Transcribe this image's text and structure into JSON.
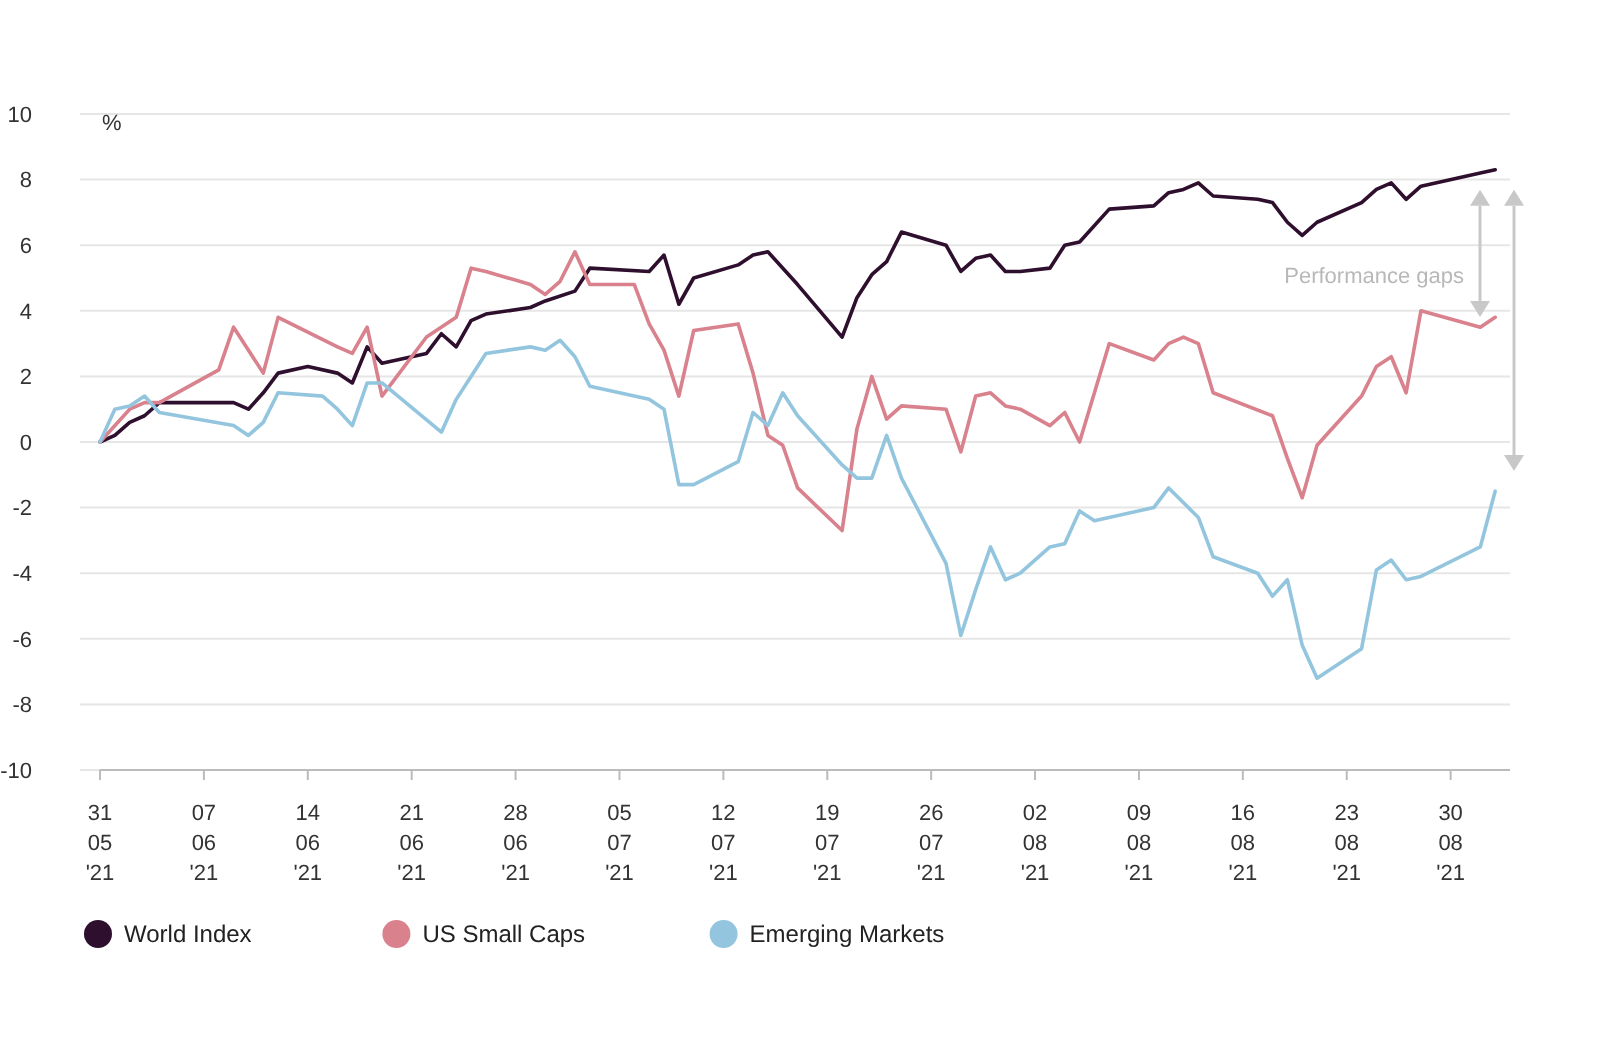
{
  "chart_data": {
    "type": "line",
    "ylabel": "%",
    "legend": "bottom",
    "grid": "y",
    "marker": "none",
    "line_style": "solid",
    "xlim": [
      "2021-05-31",
      "2021-09-03"
    ],
    "ylim": [
      -10,
      10
    ],
    "yticks": [
      -10,
      -8,
      -6,
      -4,
      -2,
      0,
      2,
      4,
      6,
      8,
      10
    ],
    "xticks": [
      {
        "value": "2021-05-31",
        "label": "31\n05\n'21"
      },
      {
        "value": "2021-06-07",
        "label": "07\n06\n'21"
      },
      {
        "value": "2021-06-14",
        "label": "14\n06\n'21"
      },
      {
        "value": "2021-06-21",
        "label": "21\n06\n'21"
      },
      {
        "value": "2021-06-28",
        "label": "28\n06\n'21"
      },
      {
        "value": "2021-07-05",
        "label": "05\n07\n'21"
      },
      {
        "value": "2021-07-12",
        "label": "12\n07\n'21"
      },
      {
        "value": "2021-07-19",
        "label": "19\n07\n'21"
      },
      {
        "value": "2021-07-26",
        "label": "26\n07\n'21"
      },
      {
        "value": "2021-08-02",
        "label": "02\n08\n'21"
      },
      {
        "value": "2021-08-09",
        "label": "09\n08\n'21"
      },
      {
        "value": "2021-08-16",
        "label": "16\n08\n'21"
      },
      {
        "value": "2021-08-23",
        "label": "23\n08\n'21"
      },
      {
        "value": "2021-08-30",
        "label": "30\n08\n'21"
      }
    ],
    "annotations": [
      "Performance gaps"
    ],
    "series": [
      {
        "name": "World Index",
        "color": "#2e0f2e",
        "x": [
          "2021-05-31",
          "2021-06-01",
          "2021-06-02",
          "2021-06-03",
          "2021-06-04",
          "2021-06-09",
          "2021-06-10",
          "2021-06-11",
          "2021-06-12",
          "2021-06-14",
          "2021-06-16",
          "2021-06-17",
          "2021-06-18",
          "2021-06-19",
          "2021-06-22",
          "2021-06-23",
          "2021-06-24",
          "2021-06-25",
          "2021-06-26",
          "2021-06-29",
          "2021-06-30",
          "2021-07-02",
          "2021-07-03",
          "2021-07-07",
          "2021-07-08",
          "2021-07-09",
          "2021-07-10",
          "2021-07-13",
          "2021-07-14",
          "2021-07-15",
          "2021-07-17",
          "2021-07-20",
          "2021-07-21",
          "2021-07-22",
          "2021-07-23",
          "2021-07-24",
          "2021-07-27",
          "2021-07-28",
          "2021-07-29",
          "2021-07-30",
          "2021-07-31",
          "2021-08-01",
          "2021-08-03",
          "2021-08-04",
          "2021-08-05",
          "2021-08-07",
          "2021-08-10",
          "2021-08-11",
          "2021-08-12",
          "2021-08-13",
          "2021-08-14",
          "2021-08-17",
          "2021-08-18",
          "2021-08-19",
          "2021-08-20",
          "2021-08-21",
          "2021-08-24",
          "2021-08-25",
          "2021-08-26",
          "2021-08-27",
          "2021-08-28",
          "2021-09-01",
          "2021-09-02"
        ],
        "values": [
          0,
          0.2,
          0.6,
          0.8,
          1.2,
          1.2,
          1.0,
          1.5,
          2.1,
          2.3,
          2.1,
          1.8,
          2.9,
          2.4,
          2.7,
          3.3,
          2.9,
          3.7,
          3.9,
          4.1,
          4.3,
          4.6,
          5.3,
          5.2,
          5.7,
          4.2,
          5.0,
          5.4,
          5.7,
          5.8,
          4.8,
          3.2,
          4.4,
          5.1,
          5.5,
          6.4,
          6.0,
          5.2,
          5.6,
          5.7,
          5.2,
          5.2,
          5.3,
          6.0,
          6.1,
          7.1,
          7.2,
          7.6,
          7.7,
          7.9,
          7.5,
          7.4,
          7.3,
          6.7,
          6.3,
          6.7,
          7.3,
          7.7,
          7.9,
          7.4,
          7.8,
          8.2,
          8.3
        ]
      },
      {
        "name": "US Small Caps",
        "color": "#d9818c",
        "x": [
          "2021-05-31",
          "2021-06-02",
          "2021-06-03",
          "2021-06-04",
          "2021-06-08",
          "2021-06-09",
          "2021-06-11",
          "2021-06-12",
          "2021-06-16",
          "2021-06-17",
          "2021-06-18",
          "2021-06-19",
          "2021-06-22",
          "2021-06-24",
          "2021-06-25",
          "2021-06-26",
          "2021-06-29",
          "2021-06-30",
          "2021-07-01",
          "2021-07-02",
          "2021-07-03",
          "2021-07-06",
          "2021-07-07",
          "2021-07-08",
          "2021-07-09",
          "2021-07-10",
          "2021-07-13",
          "2021-07-14",
          "2021-07-15",
          "2021-07-16",
          "2021-07-17",
          "2021-07-20",
          "2021-07-21",
          "2021-07-22",
          "2021-07-23",
          "2021-07-24",
          "2021-07-27",
          "2021-07-28",
          "2021-07-29",
          "2021-07-30",
          "2021-07-31",
          "2021-08-01",
          "2021-08-03",
          "2021-08-04",
          "2021-08-05",
          "2021-08-07",
          "2021-08-10",
          "2021-08-11",
          "2021-08-12",
          "2021-08-13",
          "2021-08-14",
          "2021-08-18",
          "2021-08-19",
          "2021-08-20",
          "2021-08-21",
          "2021-08-24",
          "2021-08-25",
          "2021-08-26",
          "2021-08-27",
          "2021-08-28",
          "2021-09-01",
          "2021-09-02"
        ],
        "values": [
          0,
          1.0,
          1.2,
          1.2,
          2.2,
          3.5,
          2.1,
          3.8,
          2.9,
          2.7,
          3.5,
          1.4,
          3.2,
          3.8,
          5.3,
          5.2,
          4.8,
          4.5,
          4.9,
          5.8,
          4.8,
          4.8,
          3.6,
          2.8,
          1.4,
          3.4,
          3.6,
          2.1,
          0.2,
          -0.1,
          -1.4,
          -2.7,
          0.4,
          2.0,
          0.7,
          1.1,
          1.0,
          -0.3,
          1.4,
          1.5,
          1.1,
          1.0,
          0.5,
          0.9,
          0.0,
          3.0,
          2.5,
          3.0,
          3.2,
          3.0,
          1.5,
          0.8,
          -0.5,
          -1.7,
          -0.1,
          1.4,
          2.3,
          2.6,
          1.5,
          4.0,
          3.5,
          3.8
        ]
      },
      {
        "name": "Emerging Markets",
        "color": "#93c6de",
        "x": [
          "2021-05-31",
          "2021-06-01",
          "2021-06-02",
          "2021-06-03",
          "2021-06-04",
          "2021-06-09",
          "2021-06-10",
          "2021-06-11",
          "2021-06-12",
          "2021-06-15",
          "2021-06-16",
          "2021-06-17",
          "2021-06-18",
          "2021-06-19",
          "2021-06-23",
          "2021-06-24",
          "2021-06-25",
          "2021-06-26",
          "2021-06-29",
          "2021-06-30",
          "2021-07-01",
          "2021-07-02",
          "2021-07-03",
          "2021-07-07",
          "2021-07-08",
          "2021-07-09",
          "2021-07-10",
          "2021-07-13",
          "2021-07-14",
          "2021-07-15",
          "2021-07-16",
          "2021-07-17",
          "2021-07-20",
          "2021-07-21",
          "2021-07-22",
          "2021-07-23",
          "2021-07-24",
          "2021-07-27",
          "2021-07-28",
          "2021-07-29",
          "2021-07-30",
          "2021-07-31",
          "2021-08-01",
          "2021-08-03",
          "2021-08-04",
          "2021-08-05",
          "2021-08-06",
          "2021-08-10",
          "2021-08-11",
          "2021-08-13",
          "2021-08-14",
          "2021-08-17",
          "2021-08-18",
          "2021-08-19",
          "2021-08-20",
          "2021-08-21",
          "2021-08-24",
          "2021-08-25",
          "2021-08-26",
          "2021-08-27",
          "2021-08-28",
          "2021-09-01",
          "2021-09-02"
        ],
        "values": [
          0,
          1.0,
          1.1,
          1.4,
          0.9,
          0.5,
          0.2,
          0.6,
          1.5,
          1.4,
          1.0,
          0.5,
          1.8,
          1.8,
          0.3,
          1.3,
          2.0,
          2.7,
          2.9,
          2.8,
          3.1,
          2.6,
          1.7,
          1.3,
          1.0,
          -1.3,
          -1.3,
          -0.6,
          0.9,
          0.5,
          1.5,
          0.8,
          -0.7,
          -1.1,
          -1.1,
          0.2,
          -1.1,
          -3.7,
          -5.9,
          -4.5,
          -3.2,
          -4.2,
          -4.0,
          -3.2,
          -3.1,
          -2.1,
          -2.4,
          -2.0,
          -1.4,
          -2.3,
          -3.5,
          -4.0,
          -4.7,
          -4.2,
          -6.2,
          -7.2,
          -6.3,
          -3.9,
          -3.6,
          -4.2,
          -4.1,
          -3.2,
          -1.5
        ]
      }
    ]
  }
}
